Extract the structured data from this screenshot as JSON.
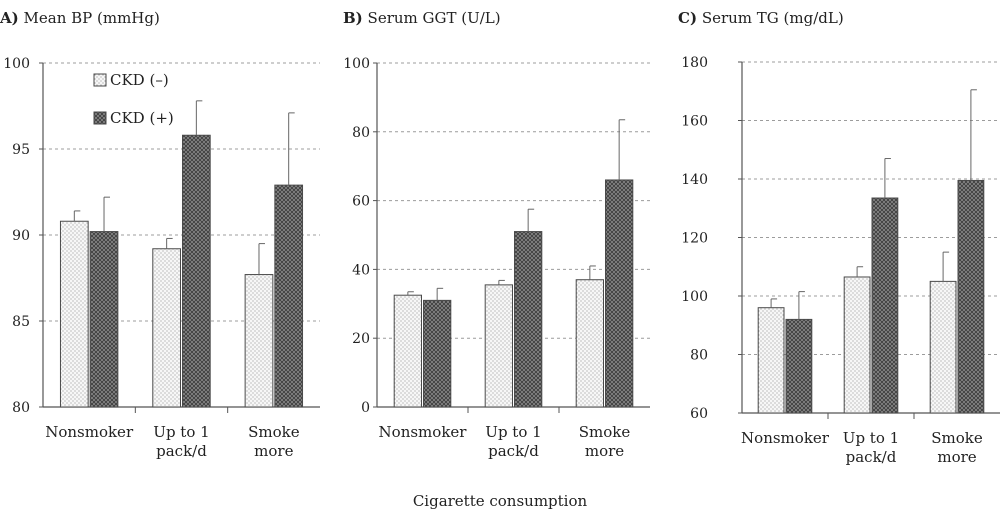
{
  "figure": {
    "xlabel": "Cigarette consumption",
    "legend": [
      {
        "label": "CKD (–)",
        "pattern": "light-dots"
      },
      {
        "label": "CKD (+)",
        "pattern": "dark-crosshatch"
      }
    ]
  },
  "chart_data": [
    {
      "type": "bar",
      "panel_letter": "A)",
      "title": "Mean BP (mmHg)",
      "categories": [
        [
          "Nonsmoker"
        ],
        [
          "Up to 1",
          "pack/d"
        ],
        [
          "Smoke",
          "more"
        ]
      ],
      "ylim": [
        80,
        100
      ],
      "yticks": [
        80,
        85,
        90,
        95,
        100
      ],
      "series": [
        {
          "name": "CKD (–)",
          "values": [
            90.8,
            89.2,
            87.7
          ],
          "errors": [
            0.6,
            0.6,
            1.8
          ]
        },
        {
          "name": "CKD (+)",
          "values": [
            90.2,
            95.8,
            92.9
          ],
          "errors": [
            2.0,
            2.0,
            4.2
          ]
        }
      ],
      "grid": true,
      "legend_position": "top-left"
    },
    {
      "type": "bar",
      "panel_letter": "B)",
      "title": "Serum GGT (U/L)",
      "categories": [
        [
          "Nonsmoker"
        ],
        [
          "Up to 1",
          "pack/d"
        ],
        [
          "Smoke",
          "more"
        ]
      ],
      "ylim": [
        0,
        100
      ],
      "yticks": [
        0,
        20,
        40,
        60,
        80,
        100
      ],
      "series": [
        {
          "name": "CKD (–)",
          "values": [
            32.5,
            35.5,
            37.0
          ],
          "errors": [
            1.0,
            1.3,
            4.0
          ]
        },
        {
          "name": "CKD (+)",
          "values": [
            31.0,
            51.0,
            66.0
          ],
          "errors": [
            3.5,
            6.5,
            17.5
          ]
        }
      ],
      "grid": true
    },
    {
      "type": "bar",
      "panel_letter": "C)",
      "title": "Serum TG (mg/dL)",
      "categories": [
        [
          "Nonsmoker"
        ],
        [
          "Up to 1",
          "pack/d"
        ],
        [
          "Smoke",
          "more"
        ]
      ],
      "ylim": [
        60,
        180
      ],
      "yticks": [
        60,
        80,
        100,
        120,
        140,
        160,
        180
      ],
      "series": [
        {
          "name": "CKD (–)",
          "values": [
            96.0,
            106.5,
            105.0
          ],
          "errors": [
            3.0,
            3.5,
            10.0
          ]
        },
        {
          "name": "CKD (+)",
          "values": [
            92.0,
            133.5,
            139.5
          ],
          "errors": [
            9.5,
            13.5,
            31.0
          ]
        }
      ],
      "grid": true
    }
  ]
}
